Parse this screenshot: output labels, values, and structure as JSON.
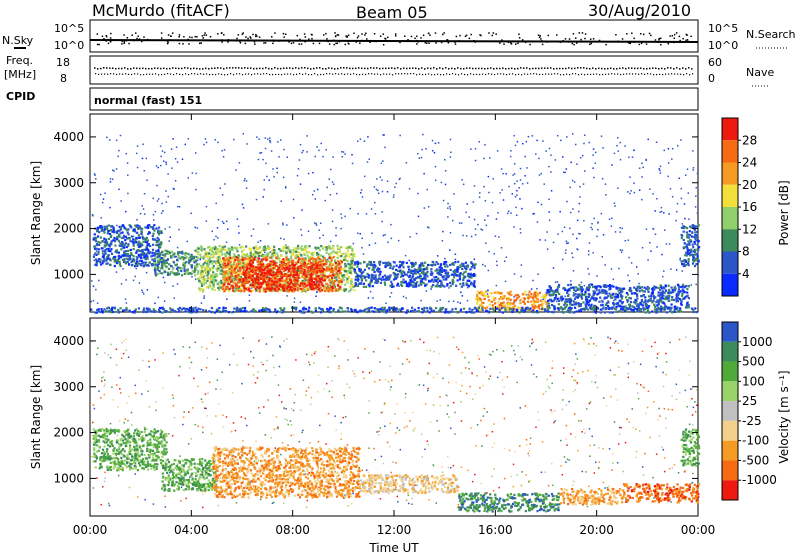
{
  "header": {
    "station": "McMurdo (fitACF)",
    "beam": "Beam 05",
    "date": "30/Aug/2010"
  },
  "top_panels": {
    "nsky_label": "N.Sky",
    "nsky_ticks": [
      "10^5",
      "10^0"
    ],
    "nsearch_label": "N.Search",
    "nsearch_ticks": [
      "10^5",
      "10^0"
    ],
    "freq_label_1": "Freq.",
    "freq_label_2": "[MHz]",
    "freq_ticks": [
      "18",
      "8"
    ],
    "nave_label": "Nave",
    "nave_ticks": [
      "60",
      "0"
    ],
    "cpid_label": "CPID",
    "cpid_value": "normal (fast) 151"
  },
  "chart_data": [
    {
      "type": "heatmap",
      "quantity": "Power",
      "colorbar_label": "Power [dB]",
      "colorbar_ticks": [
        "28",
        "24",
        "20",
        "16",
        "12",
        "8",
        "4"
      ],
      "ylabel": "Slant Range [km]",
      "ylim": [
        180,
        4500
      ],
      "yticks": [
        "1000",
        "2000",
        "3000",
        "4000"
      ],
      "xlabel": "Time UT",
      "xlim_hours": [
        0,
        24
      ],
      "xticks": [
        "00:00",
        "04:00",
        "08:00",
        "12:00",
        "16:00",
        "20:00",
        "00:00"
      ],
      "colors": [
        "#0a2bff",
        "#2b56c8",
        "#3d8a5a",
        "#8fd06a",
        "#f3e03a",
        "#f59b23",
        "#f56a12",
        "#ee1a0f"
      ],
      "regions": [
        {
          "t0": 0.1,
          "t1": 2.8,
          "r0": 1200,
          "r1": 2100,
          "level": 1
        },
        {
          "t0": 2.5,
          "t1": 4.2,
          "r0": 1000,
          "r1": 1550,
          "level": 2
        },
        {
          "t0": 4.2,
          "t1": 10.4,
          "r0": 650,
          "r1": 1650,
          "level": 3
        },
        {
          "t0": 5.2,
          "t1": 9.9,
          "r0": 650,
          "r1": 1400,
          "level": 6
        },
        {
          "t0": 6.0,
          "t1": 9.2,
          "r0": 700,
          "r1": 1250,
          "level": 7
        },
        {
          "t0": 10.4,
          "t1": 15.2,
          "r0": 750,
          "r1": 1300,
          "level": 1
        },
        {
          "t0": 15.2,
          "t1": 18.0,
          "r0": 250,
          "r1": 650,
          "level": 5
        },
        {
          "t0": 18.0,
          "t1": 23.6,
          "r0": 250,
          "r1": 800,
          "level": 1
        },
        {
          "t0": 23.3,
          "t1": 24.0,
          "r0": 1200,
          "r1": 2100,
          "level": 1
        },
        {
          "t0": 0.0,
          "t1": 24.0,
          "r0": 190,
          "r1": 300,
          "level": 1
        }
      ]
    },
    {
      "type": "heatmap",
      "quantity": "Velocity",
      "colorbar_label": "Velocity [m s⁻¹]",
      "colorbar_ticks": [
        "1000",
        "500",
        "100",
        "25",
        "-25",
        "-100",
        "-500",
        "-1000"
      ],
      "ylabel": "Slant Range [km]",
      "ylim": [
        180,
        4500
      ],
      "yticks": [
        "1000",
        "2000",
        "3000",
        "4000"
      ],
      "xlabel": "Time UT",
      "xlim_hours": [
        0,
        24
      ],
      "xticks": [
        "00:00",
        "04:00",
        "08:00",
        "12:00",
        "16:00",
        "20:00",
        "00:00"
      ],
      "colors": [
        "#ee1a0f",
        "#f56a12",
        "#f59b23",
        "#f3d08a",
        "#c0c0c0",
        "#9ad36a",
        "#4faa3a",
        "#3d8a5a",
        "#2b56c8"
      ],
      "regions": [
        {
          "t0": 0.1,
          "t1": 3.0,
          "r0": 1200,
          "r1": 2100,
          "level": 6
        },
        {
          "t0": 2.8,
          "t1": 5.0,
          "r0": 750,
          "r1": 1450,
          "level": 6
        },
        {
          "t0": 4.8,
          "t1": 10.6,
          "r0": 600,
          "r1": 1700,
          "level": 2
        },
        {
          "t0": 10.6,
          "t1": 14.5,
          "r0": 700,
          "r1": 1100,
          "level": 3
        },
        {
          "t0": 14.5,
          "t1": 18.5,
          "r0": 300,
          "r1": 700,
          "level": 7
        },
        {
          "t0": 18.5,
          "t1": 21.0,
          "r0": 450,
          "r1": 800,
          "level": 2
        },
        {
          "t0": 21.0,
          "t1": 24.0,
          "r0": 500,
          "r1": 900,
          "level": 1
        },
        {
          "t0": 23.3,
          "t1": 24.0,
          "r0": 1300,
          "r1": 2100,
          "level": 6
        }
      ]
    }
  ]
}
